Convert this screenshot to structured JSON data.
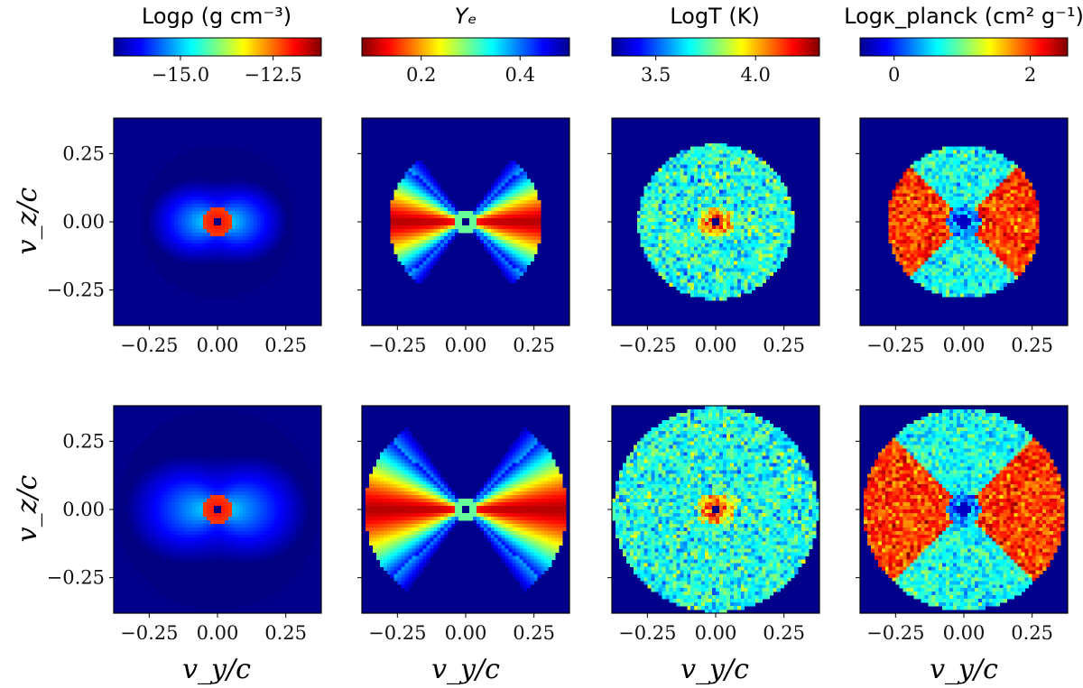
{
  "figure": {
    "colormap": "jet",
    "background_color": "#00008b",
    "rows": 2,
    "cols": 4
  },
  "chart_data": [
    {
      "type": "heatmap",
      "quantity": "rho",
      "colorbar": {
        "title": "Logρ (g cm⁻³)",
        "range": [
          -16.8,
          -11.2
        ],
        "ticks": [
          -15.0,
          -12.5
        ],
        "tick_labels": [
          "−15.0",
          "−12.5"
        ],
        "reversed": false
      },
      "panels": [
        {
          "row": 1,
          "xlabel": "",
          "ylabel": "v_z/c",
          "xlim": [
            -0.38,
            0.38
          ],
          "ylim": [
            -0.38,
            0.38
          ],
          "xticks": [
            "−0.25",
            "0.00",
            "0.25"
          ],
          "yticks": [
            "0.25",
            "0.00",
            "−0.25"
          ],
          "outer_radius": 0.28,
          "core_radius": 0.055,
          "core_value": -12.0,
          "disk_value": -14.4,
          "edge_value": -16.3
        },
        {
          "row": 2,
          "xlabel": "v_y/c",
          "ylabel": "v_z/c",
          "xlim": [
            -0.38,
            0.38
          ],
          "ylim": [
            -0.38,
            0.38
          ],
          "xticks": [
            "−0.25",
            "0.00",
            "0.25"
          ],
          "yticks": [
            "0.25",
            "0.00",
            "−0.25"
          ],
          "outer_radius": 0.37,
          "core_radius": 0.055,
          "core_value": -12.0,
          "disk_value": -14.4,
          "edge_value": -16.3
        }
      ]
    },
    {
      "type": "heatmap",
      "quantity": "Ye",
      "colorbar": {
        "title": "Yₑ",
        "range": [
          0.08,
          0.5
        ],
        "ticks": [
          0.2,
          0.4
        ],
        "tick_labels": [
          "0.2",
          "0.4"
        ],
        "reversed": true
      },
      "panels": [
        {
          "row": 1,
          "xlabel": "",
          "ylabel": "",
          "xlim": [
            -0.38,
            0.38
          ],
          "ylim": [
            -0.38,
            0.38
          ],
          "xticks": [
            "−0.25",
            "0.00",
            "0.25"
          ],
          "outer_radius": 0.28,
          "core_radius": 0.045,
          "core_value": 0.3,
          "equator_value": 0.1,
          "pole_value": 0.45
        },
        {
          "row": 2,
          "xlabel": "v_y/c",
          "ylabel": "",
          "xlim": [
            -0.38,
            0.38
          ],
          "ylim": [
            -0.38,
            0.38
          ],
          "xticks": [
            "−0.25",
            "0.00",
            "0.25"
          ],
          "outer_radius": 0.37,
          "core_radius": 0.045,
          "core_value": 0.3,
          "equator_value": 0.1,
          "pole_value": 0.45
        }
      ]
    },
    {
      "type": "heatmap",
      "quantity": "T",
      "colorbar": {
        "title": "LogT (K)",
        "range": [
          3.28,
          4.32
        ],
        "ticks": [
          3.5,
          4.0
        ],
        "tick_labels": [
          "3.5",
          "4.0"
        ],
        "reversed": false
      },
      "panels": [
        {
          "row": 1,
          "xlabel": "",
          "ylabel": "",
          "xlim": [
            -0.38,
            0.38
          ],
          "ylim": [
            -0.38,
            0.38
          ],
          "xticks": [
            "−0.25",
            "0.00",
            "0.25"
          ],
          "outer_radius": 0.285,
          "core_value": 4.25,
          "typical_value": 3.7
        },
        {
          "row": 2,
          "xlabel": "v_y/c",
          "ylabel": "",
          "xlim": [
            -0.38,
            0.38
          ],
          "ylim": [
            -0.38,
            0.38
          ],
          "xticks": [
            "−0.25",
            "0.00",
            "0.25"
          ],
          "outer_radius": 0.375,
          "core_value": 4.25,
          "typical_value": 3.7
        }
      ]
    },
    {
      "type": "heatmap",
      "quantity": "kappa_planck",
      "colorbar": {
        "title": "Logκ_planck (cm² g⁻¹)",
        "range": [
          -0.5,
          2.55
        ],
        "ticks": [
          0,
          2
        ],
        "tick_labels": [
          "0",
          "2"
        ],
        "reversed": false
      },
      "panels": [
        {
          "row": 1,
          "xlabel": "",
          "ylabel": "",
          "xlim": [
            -0.38,
            0.38
          ],
          "ylim": [
            -0.38,
            0.38
          ],
          "xticks": [
            "−0.25",
            "0.00",
            "0.25"
          ],
          "outer_radius": 0.28,
          "equator_value": 2.0,
          "pole_value": 0.7
        },
        {
          "row": 2,
          "xlabel": "v_y/c",
          "ylabel": "",
          "xlim": [
            -0.38,
            0.38
          ],
          "ylim": [
            -0.38,
            0.38
          ],
          "xticks": [
            "−0.25",
            "0.00",
            "0.25"
          ],
          "outer_radius": 0.37,
          "equator_value": 2.0,
          "pole_value": 0.7
        }
      ]
    }
  ]
}
